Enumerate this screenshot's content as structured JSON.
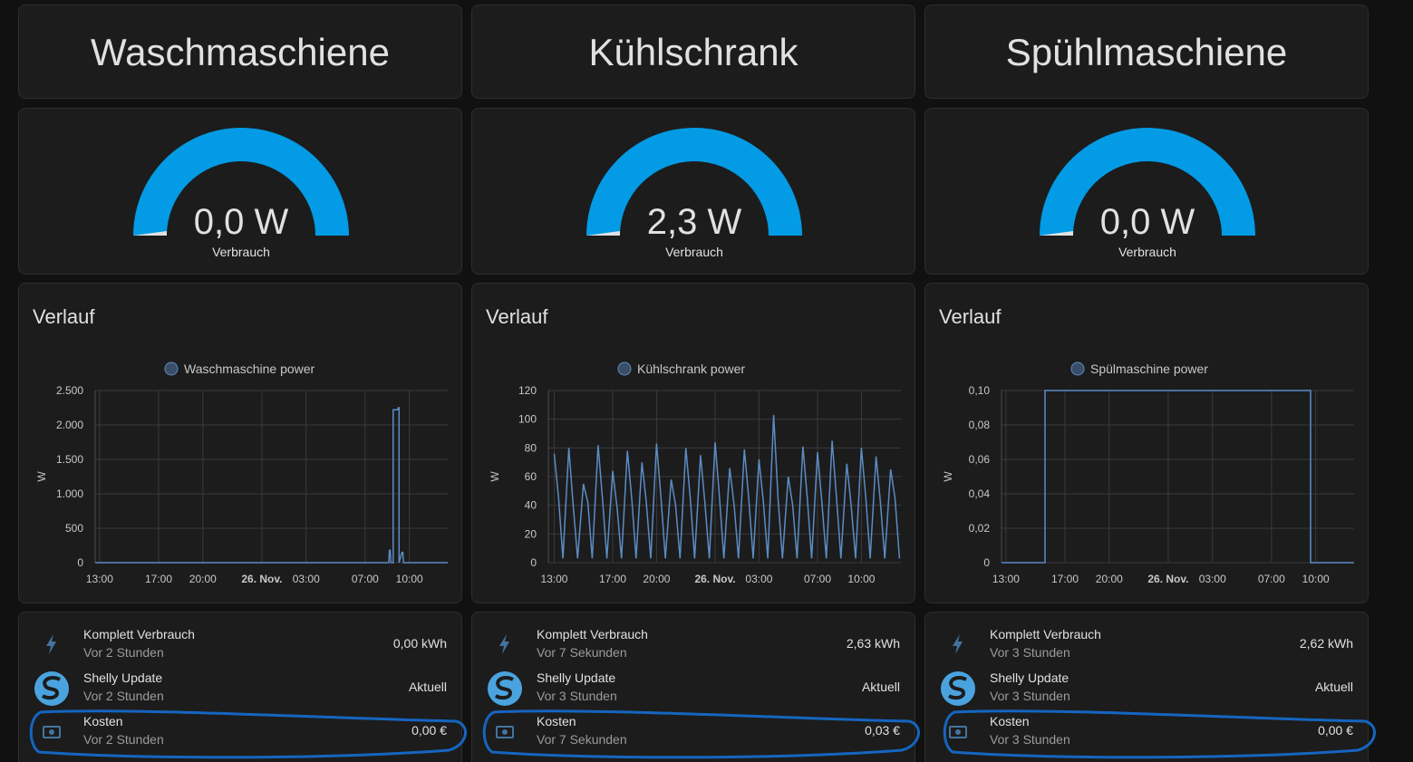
{
  "columns": [
    {
      "title": "Waschmaschiene",
      "gauge": {
        "label": "0,0 W",
        "name": "Verbrauch"
      },
      "history": {
        "title": "Verlauf",
        "chart_data": {
          "type": "line",
          "x": [
            -0.3,
            19.6,
            19.65,
            19.7,
            19.75,
            19.9,
            19.9,
            20.2,
            20.25,
            20.3,
            20.3,
            20.5,
            20.55,
            20.6,
            23.6
          ],
          "series": [
            {
              "name": "Waschmaschine power",
              "color": "#5b8cc4",
              "values": [
                0,
                0,
                180,
                180,
                0,
                0,
                2220,
                2220,
                2250,
                2250,
                0,
                150,
                150,
                0,
                0
              ]
            }
          ],
          "y_label": "W",
          "xlim": [
            -0.3,
            23.6
          ],
          "xticks": [
            {
              "value": 0,
              "label": "13:00"
            },
            {
              "value": 4,
              "label": "17:00"
            },
            {
              "value": 7,
              "label": "20:00"
            },
            {
              "value": 11,
              "label": "26. Nov."
            },
            {
              "value": 14,
              "label": "03:00"
            },
            {
              "value": 18,
              "label": "07:00"
            },
            {
              "value": 21,
              "label": "10:00"
            }
          ],
          "ylim": [
            0,
            2500
          ],
          "yticks": [
            0,
            500,
            {
              "value": 1000,
              "label": "1.000"
            },
            {
              "value": 1500,
              "label": "1.500"
            },
            {
              "value": 2000,
              "label": "2.000"
            },
            {
              "value": 2500,
              "label": "2.500"
            }
          ],
          "grid": true
        }
      },
      "entities": [
        {
          "name": "Komplett Verbrauch",
          "time": "Vor 2 Stunden",
          "state": "0,00 kWh"
        },
        {
          "name": "Shelly Update",
          "time": "Vor 2 Stunden",
          "state": "Aktuell"
        },
        {
          "name": "Kosten",
          "time": "Vor 2 Stunden",
          "state": "0,00 €"
        }
      ]
    },
    {
      "title": "Kühlschrank",
      "gauge": {
        "label": "2,3 W",
        "name": "Verbrauch"
      },
      "history": {
        "title": "Verlauf",
        "chart_data": {
          "type": "line",
          "x": [
            0,
            0.3,
            0.6,
            1,
            1.3,
            1.6,
            2,
            2.3,
            2.6,
            3,
            3.3,
            3.6,
            4,
            4.3,
            4.6,
            5,
            5.3,
            5.6,
            6,
            6.3,
            6.6,
            7,
            7.3,
            7.6,
            8,
            8.3,
            8.6,
            9,
            9.3,
            9.6,
            10,
            10.3,
            10.6,
            11,
            11.3,
            11.6,
            12,
            12.3,
            12.6,
            13,
            13.3,
            13.6,
            14,
            14.3,
            14.6,
            15,
            15.3,
            15.6,
            16,
            16.3,
            16.6,
            17,
            17.3,
            17.6,
            18,
            18.3,
            18.6,
            19,
            19.3,
            19.6,
            20,
            20.3,
            20.6,
            21,
            21.3,
            21.6,
            22,
            22.3,
            22.6,
            23,
            23.3,
            23.6
          ],
          "series": [
            {
              "name": "Kühlschrank power",
              "color": "#5b8cc4",
              "values": [
                76,
                45,
                3,
                80,
                40,
                3,
                55,
                42,
                3,
                82,
                45,
                3,
                64,
                38,
                3,
                78,
                45,
                3,
                70,
                42,
                3,
                83,
                45,
                3,
                58,
                40,
                3,
                80,
                45,
                3,
                75,
                42,
                3,
                84,
                45,
                3,
                66,
                40,
                3,
                79,
                45,
                3,
                72,
                42,
                3,
                103,
                45,
                3,
                60,
                40,
                3,
                81,
                45,
                3,
                77,
                42,
                3,
                85,
                45,
                3,
                69,
                40,
                3,
                80,
                45,
                3,
                74,
                42,
                3,
                65,
                45,
                3
              ]
            }
          ],
          "y_label": "W",
          "xlim": [
            -0.4,
            23.7
          ],
          "xticks": [
            {
              "value": 0,
              "label": "13:00"
            },
            {
              "value": 4,
              "label": "17:00"
            },
            {
              "value": 7,
              "label": "20:00"
            },
            {
              "value": 11,
              "label": "26. Nov."
            },
            {
              "value": 14,
              "label": "03:00"
            },
            {
              "value": 18,
              "label": "07:00"
            },
            {
              "value": 21,
              "label": "10:00"
            }
          ],
          "ylim": [
            0,
            120
          ],
          "yticks": [
            0,
            20,
            40,
            60,
            80,
            100,
            120
          ],
          "grid": true
        }
      },
      "entities": [
        {
          "name": "Komplett Verbrauch",
          "time": "Vor 7 Sekunden",
          "state": "2,63 kWh"
        },
        {
          "name": "Shelly Update",
          "time": "Vor 3 Stunden",
          "state": "Aktuell"
        },
        {
          "name": "Kosten",
          "time": "Vor 7 Sekunden",
          "state": "0,03 €"
        }
      ]
    },
    {
      "title": "Spühlmaschiene",
      "gauge": {
        "label": "0,0 W",
        "name": "Verbrauch"
      },
      "history": {
        "title": "Verlauf",
        "chart_data": {
          "type": "line",
          "x": [
            -0.3,
            2.65,
            2.65,
            20.65,
            20.65,
            23.6
          ],
          "series": [
            {
              "name": "Spülmaschine power",
              "color": "#5b8cc4",
              "values": [
                0,
                0,
                0.1,
                0.1,
                0,
                0
              ]
            }
          ],
          "y_label": "W",
          "xlim": [
            -0.3,
            23.6
          ],
          "xticks": [
            {
              "value": 0,
              "label": "13:00"
            },
            {
              "value": 4,
              "label": "17:00"
            },
            {
              "value": 7,
              "label": "20:00"
            },
            {
              "value": 11,
              "label": "26. Nov."
            },
            {
              "value": 14,
              "label": "03:00"
            },
            {
              "value": 18,
              "label": "07:00"
            },
            {
              "value": 21,
              "label": "10:00"
            }
          ],
          "ylim": [
            0,
            0.1
          ],
          "yticks": [
            0,
            {
              "value": 0.02,
              "label": "0,02"
            },
            {
              "value": 0.04,
              "label": "0,04"
            },
            {
              "value": 0.06,
              "label": "0,06"
            },
            {
              "value": 0.08,
              "label": "0,08"
            },
            {
              "value": 0.1,
              "label": "0,10"
            }
          ],
          "grid": true
        }
      },
      "entities": [
        {
          "name": "Komplett Verbrauch",
          "time": "Vor 3 Stunden",
          "state": "2,62 kWh"
        },
        {
          "name": "Shelly Update",
          "time": "Vor 3 Stunden",
          "state": "Aktuell"
        },
        {
          "name": "Kosten",
          "time": "Vor 3 Stunden",
          "state": "0,00 €"
        }
      ]
    }
  ]
}
